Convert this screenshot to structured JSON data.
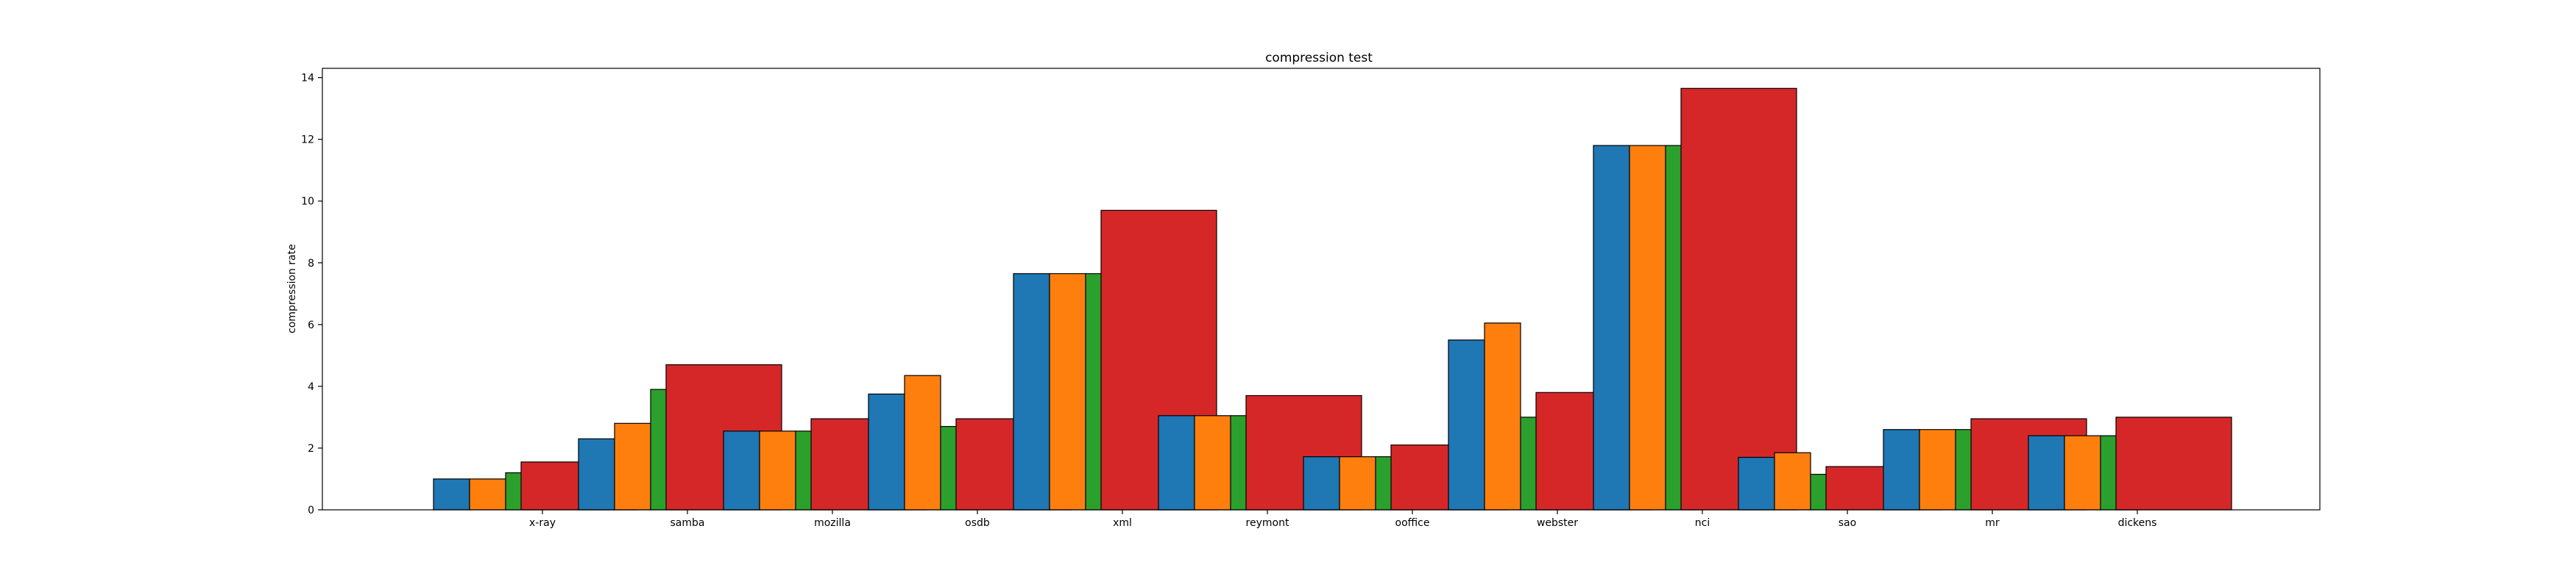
{
  "chart_data": {
    "type": "bar",
    "title": "compression test",
    "xlabel": "",
    "ylabel": "compression rate",
    "ylim": [
      0,
      14.3
    ],
    "yticks": [
      0,
      2,
      4,
      6,
      8,
      10,
      12,
      14
    ],
    "grid": false,
    "legend": "none",
    "categories": [
      "x-ray",
      "samba",
      "mozilla",
      "osdb",
      "xml",
      "reymont",
      "ooffice",
      "webster",
      "nci",
      "sao",
      "mr",
      "dickens"
    ],
    "series": [
      {
        "color": "#1f77b4",
        "values": [
          1.0,
          2.3,
          2.55,
          3.75,
          7.65,
          3.05,
          1.72,
          5.5,
          11.8,
          1.7,
          2.6,
          2.4
        ]
      },
      {
        "color": "#ff7f0e",
        "values": [
          1.0,
          2.8,
          2.55,
          4.35,
          7.65,
          3.05,
          1.72,
          6.05,
          11.8,
          1.85,
          2.6,
          2.4
        ]
      },
      {
        "color": "#2ca02c",
        "values": [
          1.2,
          3.9,
          2.55,
          2.7,
          7.65,
          3.05,
          1.72,
          3.0,
          11.8,
          1.15,
          2.6,
          2.4
        ]
      },
      {
        "color": "#d62728",
        "values": [
          1.55,
          4.7,
          2.95,
          2.95,
          9.7,
          3.7,
          2.1,
          3.8,
          13.65,
          1.4,
          2.95,
          3.0
        ]
      }
    ]
  }
}
